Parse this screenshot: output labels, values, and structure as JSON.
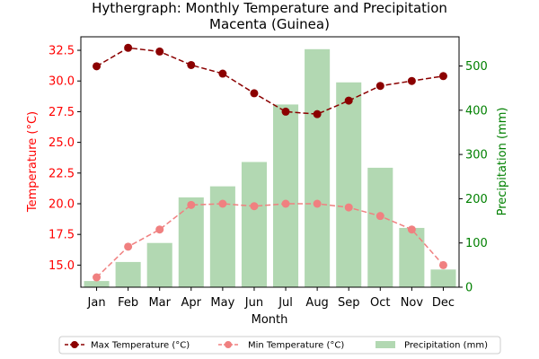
{
  "chart_data": {
    "type": "combo-bar-line",
    "title": "Hythergraph: Monthly Temperature and Precipitation",
    "subtitle": "Macenta (Guinea)",
    "xlabel": "Month",
    "ylabel_left": "Temperature (°C)",
    "ylabel_right": "Precipitation (mm)",
    "categories": [
      "Jan",
      "Feb",
      "Mar",
      "Apr",
      "May",
      "Jun",
      "Jul",
      "Aug",
      "Sep",
      "Oct",
      "Nov",
      "Dec"
    ],
    "ylim_left": [
      13.2,
      33.6
    ],
    "yticks_left": [
      "15.0",
      "17.5",
      "20.0",
      "22.5",
      "25.0",
      "27.5",
      "30.0",
      "32.5"
    ],
    "ylim_right": [
      0,
      566
    ],
    "yticks_right": [
      "0",
      "100",
      "200",
      "300",
      "400",
      "500"
    ],
    "series": [
      {
        "name": "Max Temperature (°C)",
        "kind": "line",
        "axis": "left",
        "color": "#8b0000",
        "style": "dashed",
        "values": [
          31.2,
          32.7,
          32.4,
          31.3,
          30.6,
          29.0,
          27.5,
          27.3,
          28.4,
          29.6,
          30.0,
          30.4
        ]
      },
      {
        "name": "Min Temperature (°C)",
        "kind": "line",
        "axis": "left",
        "color": "#f08080",
        "style": "dashed",
        "values": [
          14.0,
          16.5,
          17.9,
          19.9,
          20.0,
          19.8,
          20.0,
          20.0,
          19.7,
          19.0,
          17.9,
          15.0
        ]
      },
      {
        "name": "Precipitation (mm)",
        "kind": "bar",
        "axis": "right",
        "color": "#b2d8b2",
        "values": [
          14,
          57,
          100,
          203,
          228,
          283,
          413,
          538,
          463,
          270,
          134,
          40
        ]
      }
    ],
    "legend": {
      "placement": "bottom",
      "columns": 3
    },
    "colors": {
      "left_axis": "#ff0000",
      "right_axis": "#008000"
    },
    "grid": false
  }
}
